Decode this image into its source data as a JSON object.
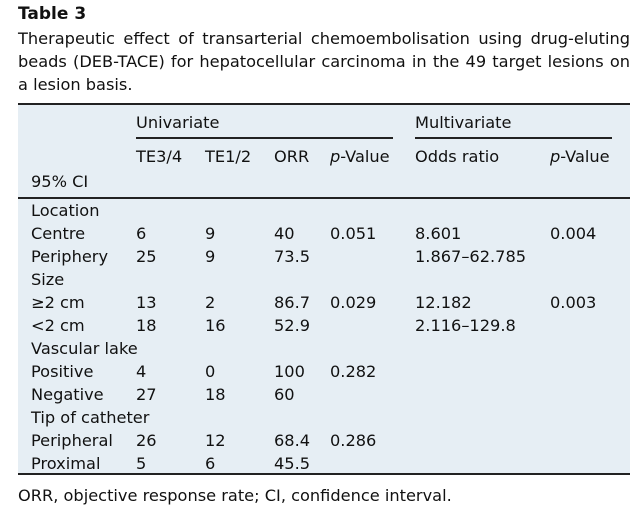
{
  "table": {
    "title": "Table 3",
    "caption": "Therapeutic effect of transarterial chemoembolisation using drug-eluting beads (DEB-TACE) for hepatocellular carcinoma in the 49 target lesions on a lesion basis.",
    "group_headers": {
      "univariate": "Univariate",
      "multivariate": "Multivariate"
    },
    "col_headers": {
      "te34": "TE3/4",
      "te12": "TE1/2",
      "orr": "ORR",
      "p_uni_italic": "p",
      "p_uni_rest": "-Value",
      "odds": "Odds ratio",
      "p_multi_italic": "p",
      "p_multi_rest": "-Value"
    },
    "ci_label": "95% CI",
    "sections": [
      {
        "label": "Location",
        "rows": [
          {
            "name": "Centre",
            "te34": "6",
            "te12": "9",
            "orr": "40",
            "p": "0.051",
            "odds": "8.601",
            "pm": "0.004"
          },
          {
            "name": "Periphery",
            "te34": "25",
            "te12": "9",
            "orr": "73.5",
            "p": "",
            "odds": "1.867–62.785",
            "pm": ""
          }
        ]
      },
      {
        "label": "Size",
        "rows": [
          {
            "name": "≥2 cm",
            "te34": "13",
            "te12": "2",
            "orr": "86.7",
            "p": "0.029",
            "odds": "12.182",
            "pm": "0.003"
          },
          {
            "name": "<2 cm",
            "te34": "18",
            "te12": "16",
            "orr": "52.9",
            "p": "",
            "odds": "2.116–129.8",
            "pm": ""
          }
        ]
      },
      {
        "label": "Vascular lake",
        "rows": [
          {
            "name": "Positive",
            "te34": "4",
            "te12": "0",
            "orr": "100",
            "p": "0.282",
            "odds": "",
            "pm": ""
          },
          {
            "name": "Negative",
            "te34": "27",
            "te12": "18",
            "orr": "60",
            "p": "",
            "odds": "",
            "pm": ""
          }
        ]
      },
      {
        "label": "Tip of catheter",
        "rows": [
          {
            "name": "Peripheral",
            "te34": "26",
            "te12": "12",
            "orr": "68.4",
            "p": "0.286",
            "odds": "",
            "pm": ""
          },
          {
            "name": "Proximal",
            "te34": "5",
            "te12": "6",
            "orr": "45.5",
            "p": "",
            "odds": "",
            "pm": ""
          }
        ]
      }
    ],
    "footnote": "ORR, objective response rate; CI, confidence interval."
  }
}
